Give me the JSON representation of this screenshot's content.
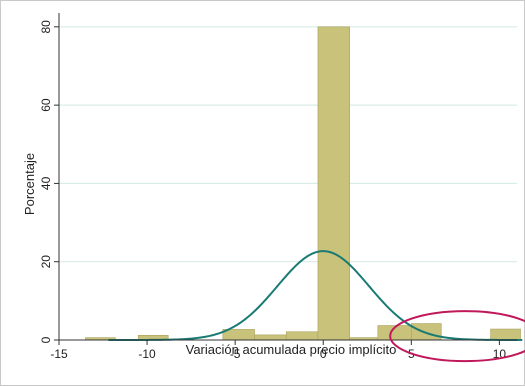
{
  "chart_data": {
    "type": "bar",
    "xlabel": "Variación acumulada precio implícito",
    "ylabel": "Porcentaje",
    "xlim": [
      -15,
      11
    ],
    "ylim": [
      0,
      82
    ],
    "x_ticks": [
      -15,
      -10,
      -5,
      0,
      5,
      10
    ],
    "y_ticks": [
      0,
      20,
      40,
      60,
      80
    ],
    "grid": true,
    "bins": [
      {
        "from": -13.5,
        "to": -11.8,
        "value": 0.6
      },
      {
        "from": -10.5,
        "to": -8.8,
        "value": 1.2
      },
      {
        "from": -5.7,
        "to": -3.9,
        "value": 2.7
      },
      {
        "from": -3.9,
        "to": -2.1,
        "value": 1.3
      },
      {
        "from": -2.1,
        "to": -0.3,
        "value": 2.1
      },
      {
        "from": -0.3,
        "to": 1.5,
        "value": 80.0
      },
      {
        "from": 1.5,
        "to": 3.1,
        "value": 0.6
      },
      {
        "from": 3.1,
        "to": 5.0,
        "value": 3.7
      },
      {
        "from": 5.0,
        "to": 6.7,
        "value": 4.2
      },
      {
        "from": 9.5,
        "to": 11.2,
        "value": 2.8
      }
    ],
    "normal_curve": {
      "mean": 0.0,
      "sd": 2.6,
      "peak": 22.7
    },
    "annotation": {
      "type": "ellipse",
      "x_from": 3.8,
      "x_to": 12.3,
      "y_center": 1.0
    }
  },
  "colors": {
    "bar_fill": "#c8c27a",
    "bar_stroke": "#a8a25a",
    "curve": "#1a7a74",
    "grid": "#d8ece8",
    "axis": "#333333",
    "annotation": "#c0185a"
  }
}
